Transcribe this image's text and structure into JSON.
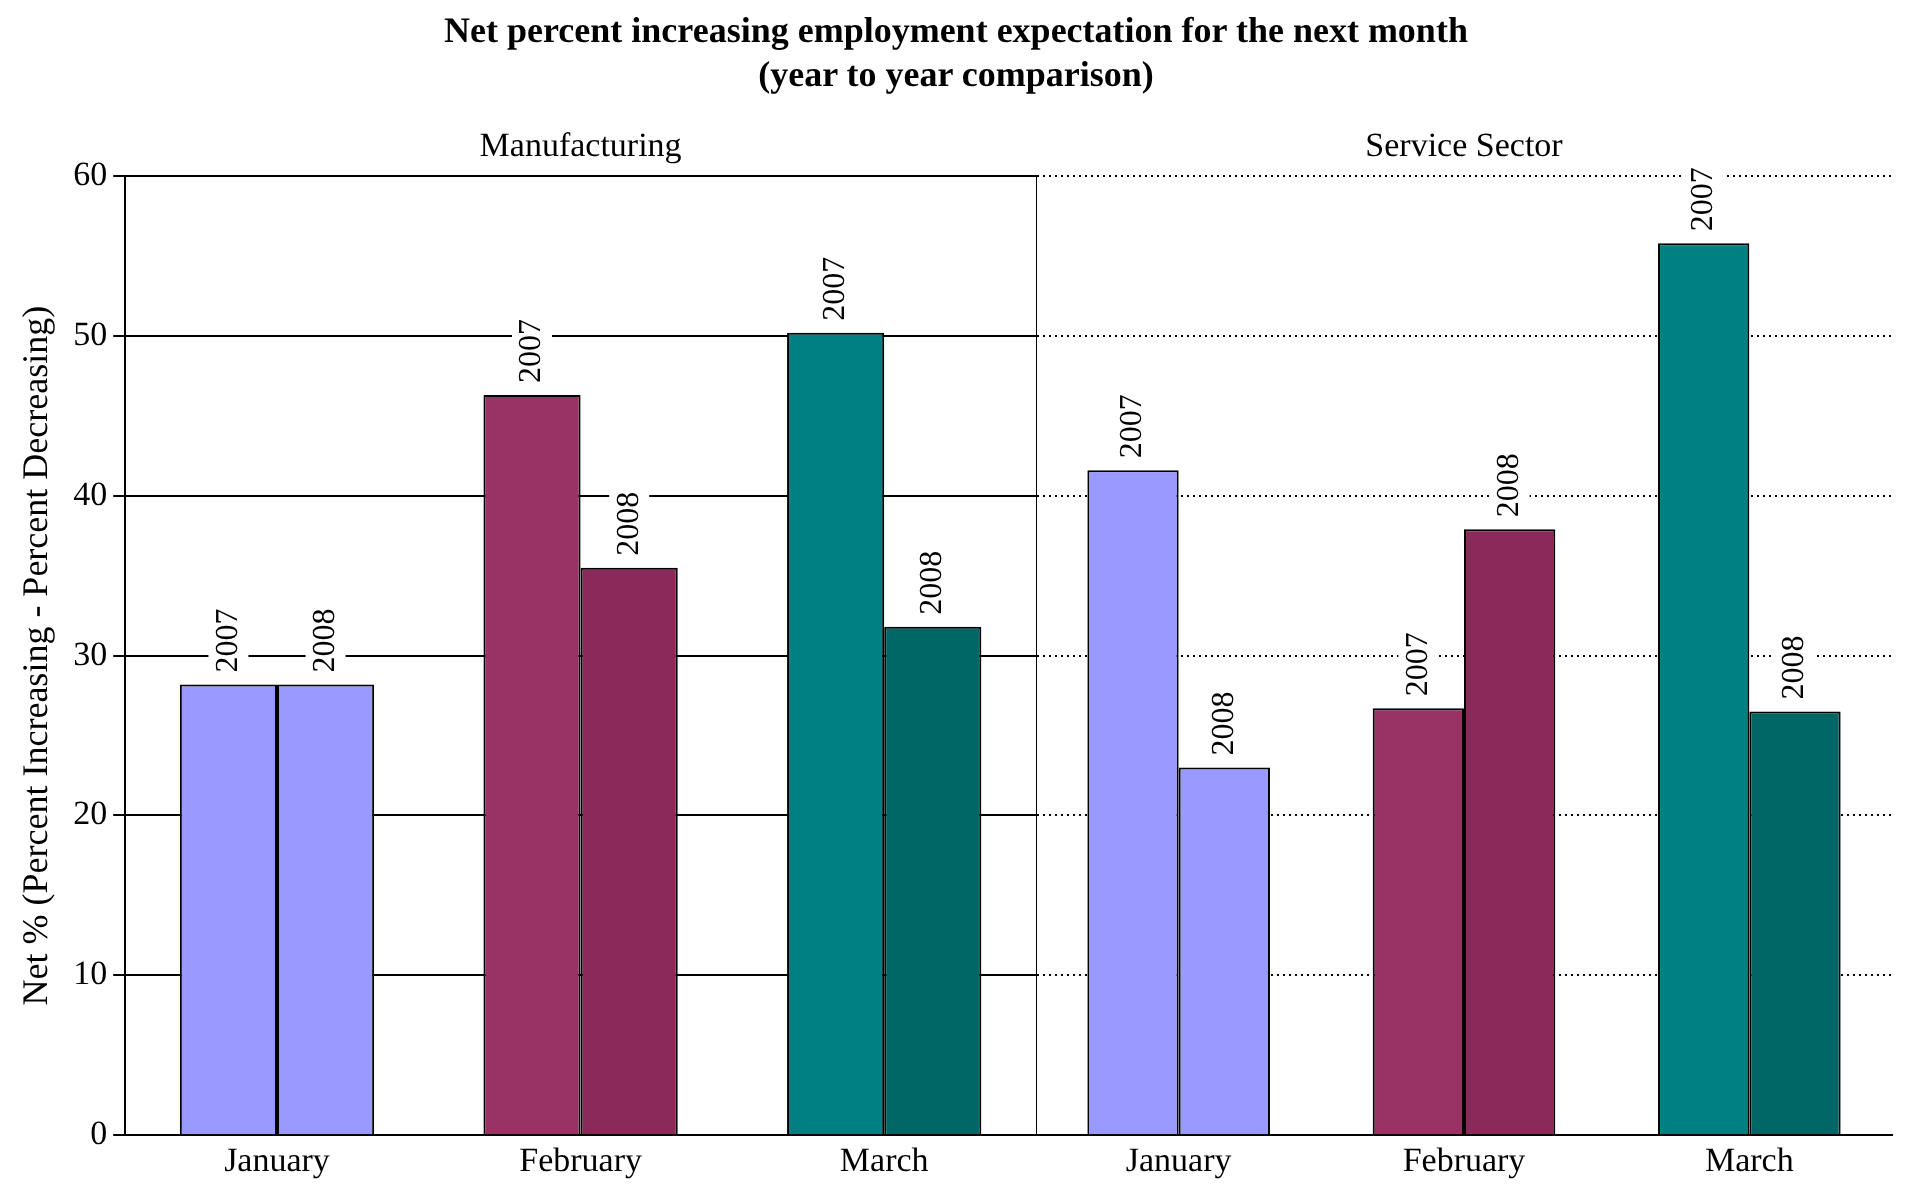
{
  "chart_data": [
    {
      "type": "bar",
      "title": "Net percent increasing employment expectation for the next month",
      "subtitle": "(year to year comparison)",
      "ylabel": "Net % (Percent Increasing - Percent Decreasing)",
      "categories": [
        "January",
        "February",
        "March"
      ],
      "series": [
        {
          "name": "2007",
          "colors": [
            "#9999ff",
            "#993366",
            "#008080"
          ],
          "values": [
            28.2,
            46.3,
            50.2
          ]
        },
        {
          "name": "2008",
          "colors": [
            "#9999ff",
            "#8b2a5a",
            "#006666"
          ],
          "values": [
            28.2,
            35.5,
            31.8
          ]
        }
      ],
      "annotations": [
        "Manufacturing"
      ],
      "ylim": [
        0,
        60
      ],
      "yticks": [
        0,
        10,
        20,
        30,
        40,
        50,
        60
      ],
      "grid": "y",
      "legend": false
    },
    {
      "type": "bar",
      "categories": [
        "January",
        "February",
        "March"
      ],
      "series": [
        {
          "name": "2007",
          "colors": [
            "#9999ff",
            "#993366",
            "#008080"
          ],
          "values": [
            41.6,
            26.7,
            55.8
          ]
        },
        {
          "name": "2008",
          "colors": [
            "#9999ff",
            "#8b2a5a",
            "#006666"
          ],
          "values": [
            23.0,
            37.9,
            26.5
          ]
        }
      ],
      "annotations": [
        "Service Sector"
      ],
      "ylim": [
        0,
        60
      ],
      "yticks": [
        0,
        10,
        20,
        30,
        40,
        50,
        60
      ],
      "grid": "y",
      "legend": false,
      "tick_labels": "x"
    }
  ]
}
